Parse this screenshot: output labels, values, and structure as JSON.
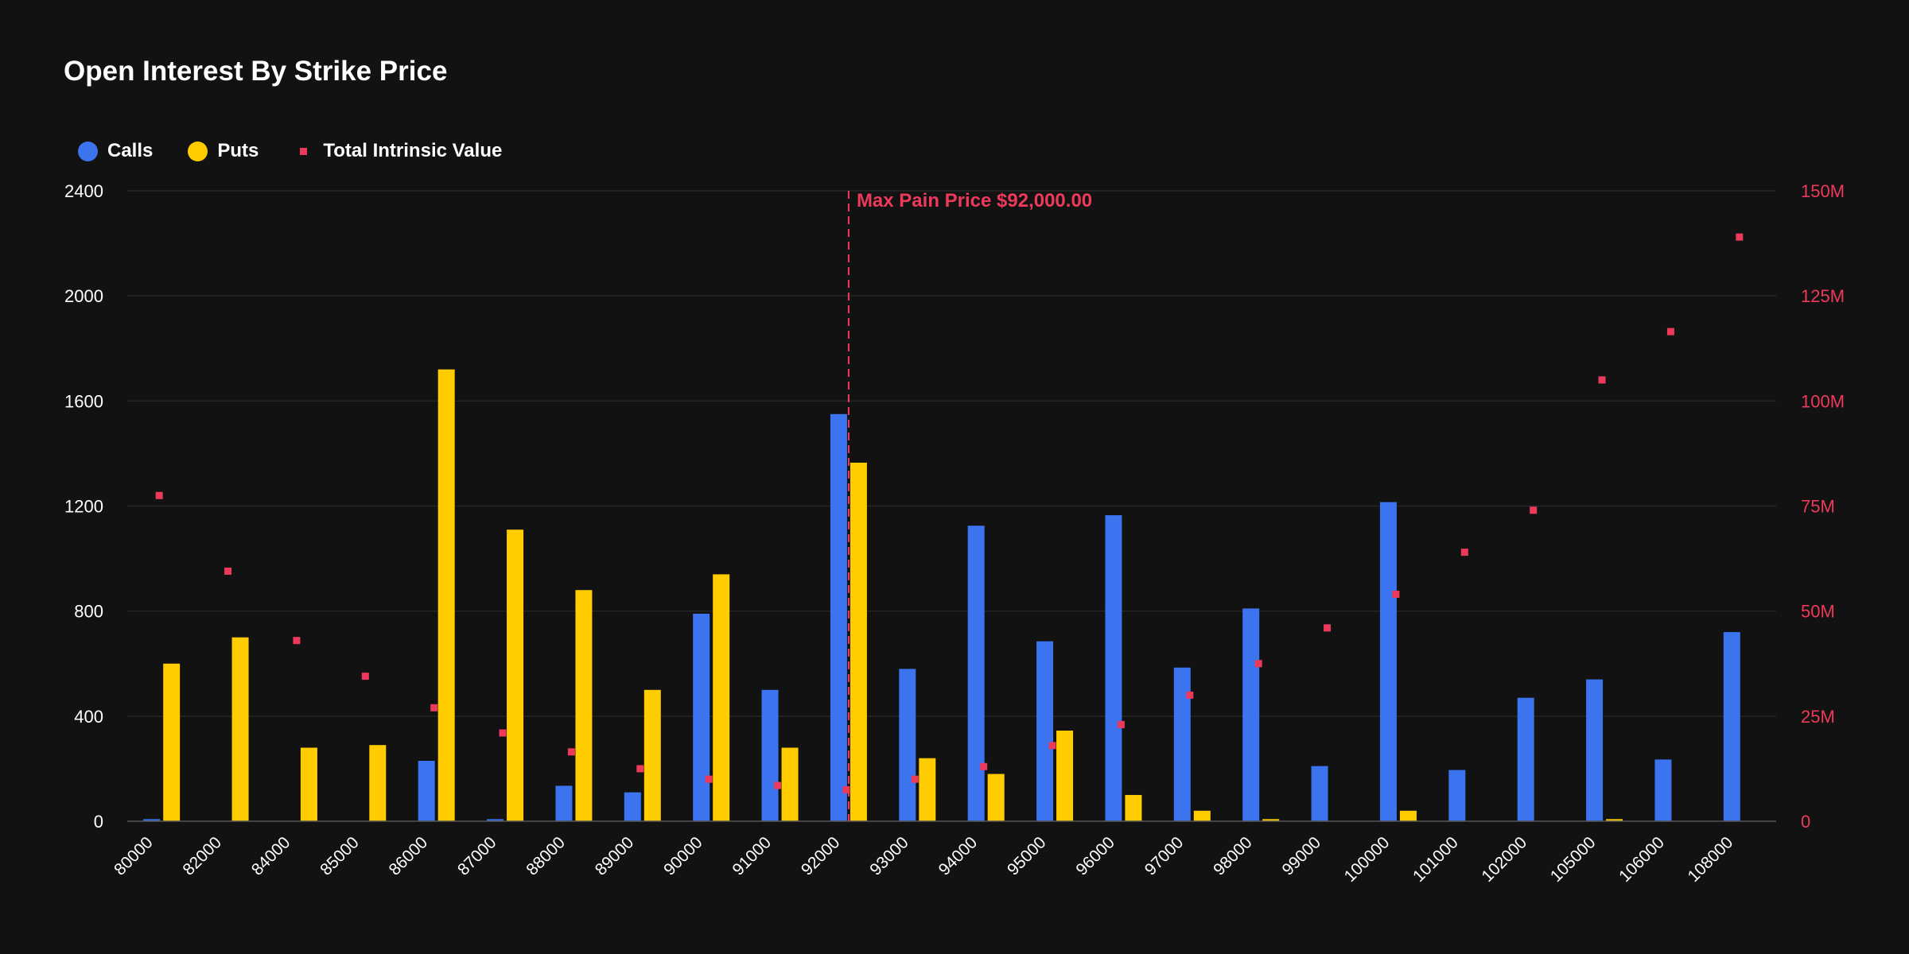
{
  "chart_data": {
    "type": "bar",
    "title": "Open Interest By Strike Price",
    "categories": [
      "80000",
      "82000",
      "84000",
      "85000",
      "86000",
      "87000",
      "88000",
      "89000",
      "90000",
      "91000",
      "92000",
      "93000",
      "94000",
      "95000",
      "96000",
      "97000",
      "98000",
      "99000",
      "100000",
      "101000",
      "102000",
      "105000",
      "106000",
      "108000"
    ],
    "series": [
      {
        "name": "Calls",
        "color": "#3b74ee",
        "values": [
          8,
          0,
          0,
          0,
          230,
          8,
          135,
          110,
          790,
          500,
          1550,
          580,
          1125,
          685,
          1165,
          585,
          810,
          210,
          1215,
          195,
          470,
          540,
          235,
          720
        ]
      },
      {
        "name": "Puts",
        "color": "#ffcc00",
        "values": [
          600,
          700,
          280,
          290,
          1720,
          1110,
          880,
          500,
          940,
          280,
          1365,
          240,
          180,
          345,
          100,
          40,
          8,
          0,
          40,
          0,
          0,
          8,
          0,
          0
        ]
      }
    ],
    "scatter_series": {
      "name": "Total Intrinsic Value",
      "color": "#ee3a5a",
      "axis": "right",
      "values": [
        77500000,
        59500000,
        43000000,
        34500000,
        27000000,
        21000000,
        16500000,
        12500000,
        10000000,
        8500000,
        7500000,
        10000000,
        13000000,
        18000000,
        23000000,
        30000000,
        37500000,
        46000000,
        54000000,
        64000000,
        74000000,
        105000000,
        116500000,
        139000000
      ]
    },
    "y_left": {
      "ylim": [
        0,
        2400
      ],
      "ticks": [
        0,
        400,
        800,
        1200,
        1600,
        2000,
        2400
      ],
      "tick_labels": [
        "0",
        "400",
        "800",
        "1200",
        "1600",
        "2000",
        "2400"
      ]
    },
    "y_right": {
      "ylim": [
        0,
        150000000
      ],
      "ticks": [
        0,
        25000000,
        50000000,
        75000000,
        100000000,
        125000000,
        150000000
      ],
      "tick_labels": [
        "0",
        "25M",
        "50M",
        "75M",
        "100M",
        "125M",
        "150M"
      ],
      "color": "#ee3a5a"
    },
    "annotation": {
      "label": "Max Pain Price $92,000.00",
      "category": "92000",
      "color": "#ee3a5a"
    },
    "grid": true,
    "legend_placement": "top-left"
  }
}
